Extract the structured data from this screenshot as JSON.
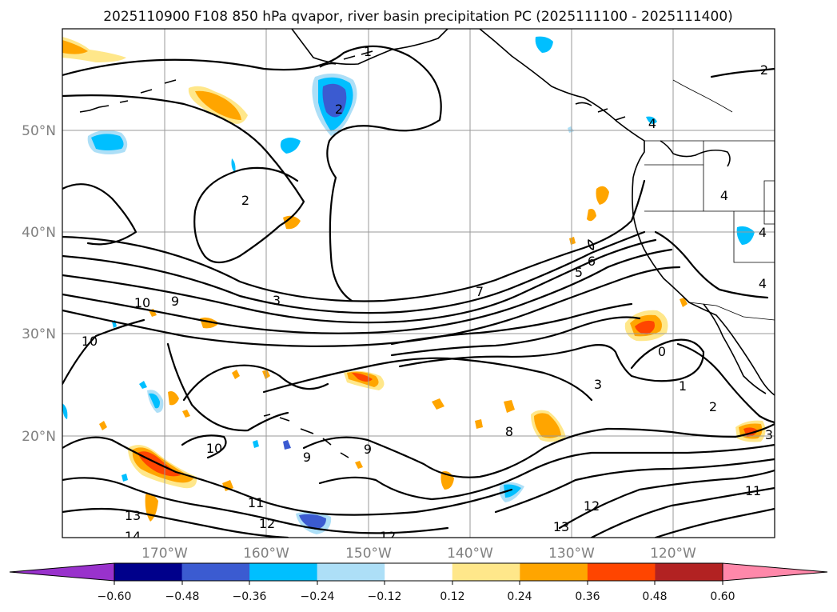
{
  "title": "2025110900 F108 850 hPa qvapor, river basin precipitation PC (2025111100 - 2025111400)",
  "lon_labels": [
    "170°W",
    "160°W",
    "150°W",
    "140°W",
    "130°W",
    "120°W"
  ],
  "lat_labels": [
    "50°N",
    "40°N",
    "30°N",
    "20°N"
  ],
  "colorbar": {
    "tick_labels": [
      "−0.60",
      "−0.48",
      "−0.36",
      "−0.24",
      "−0.12",
      "0.12",
      "0.24",
      "0.36",
      "0.48",
      "0.60"
    ],
    "colors": [
      "#9932CC",
      "#00008B",
      "#3B5BD1",
      "#00BFFF",
      "#ADDFF7",
      "#FFFFFF",
      "#FFE78A",
      "#FFA500",
      "#FF4500",
      "#B22222",
      "#FF88AA"
    ]
  },
  "contour_labels": [
    "1",
    "2",
    "2",
    "2",
    "4",
    "4",
    "4",
    "3",
    "9",
    "10",
    "10",
    "7",
    "6",
    "5",
    "0",
    "1",
    "2",
    "3",
    "8",
    "9",
    "9",
    "10",
    "11",
    "12",
    "12",
    "13",
    "13",
    "14",
    "11",
    "12",
    "3",
    "4"
  ]
}
